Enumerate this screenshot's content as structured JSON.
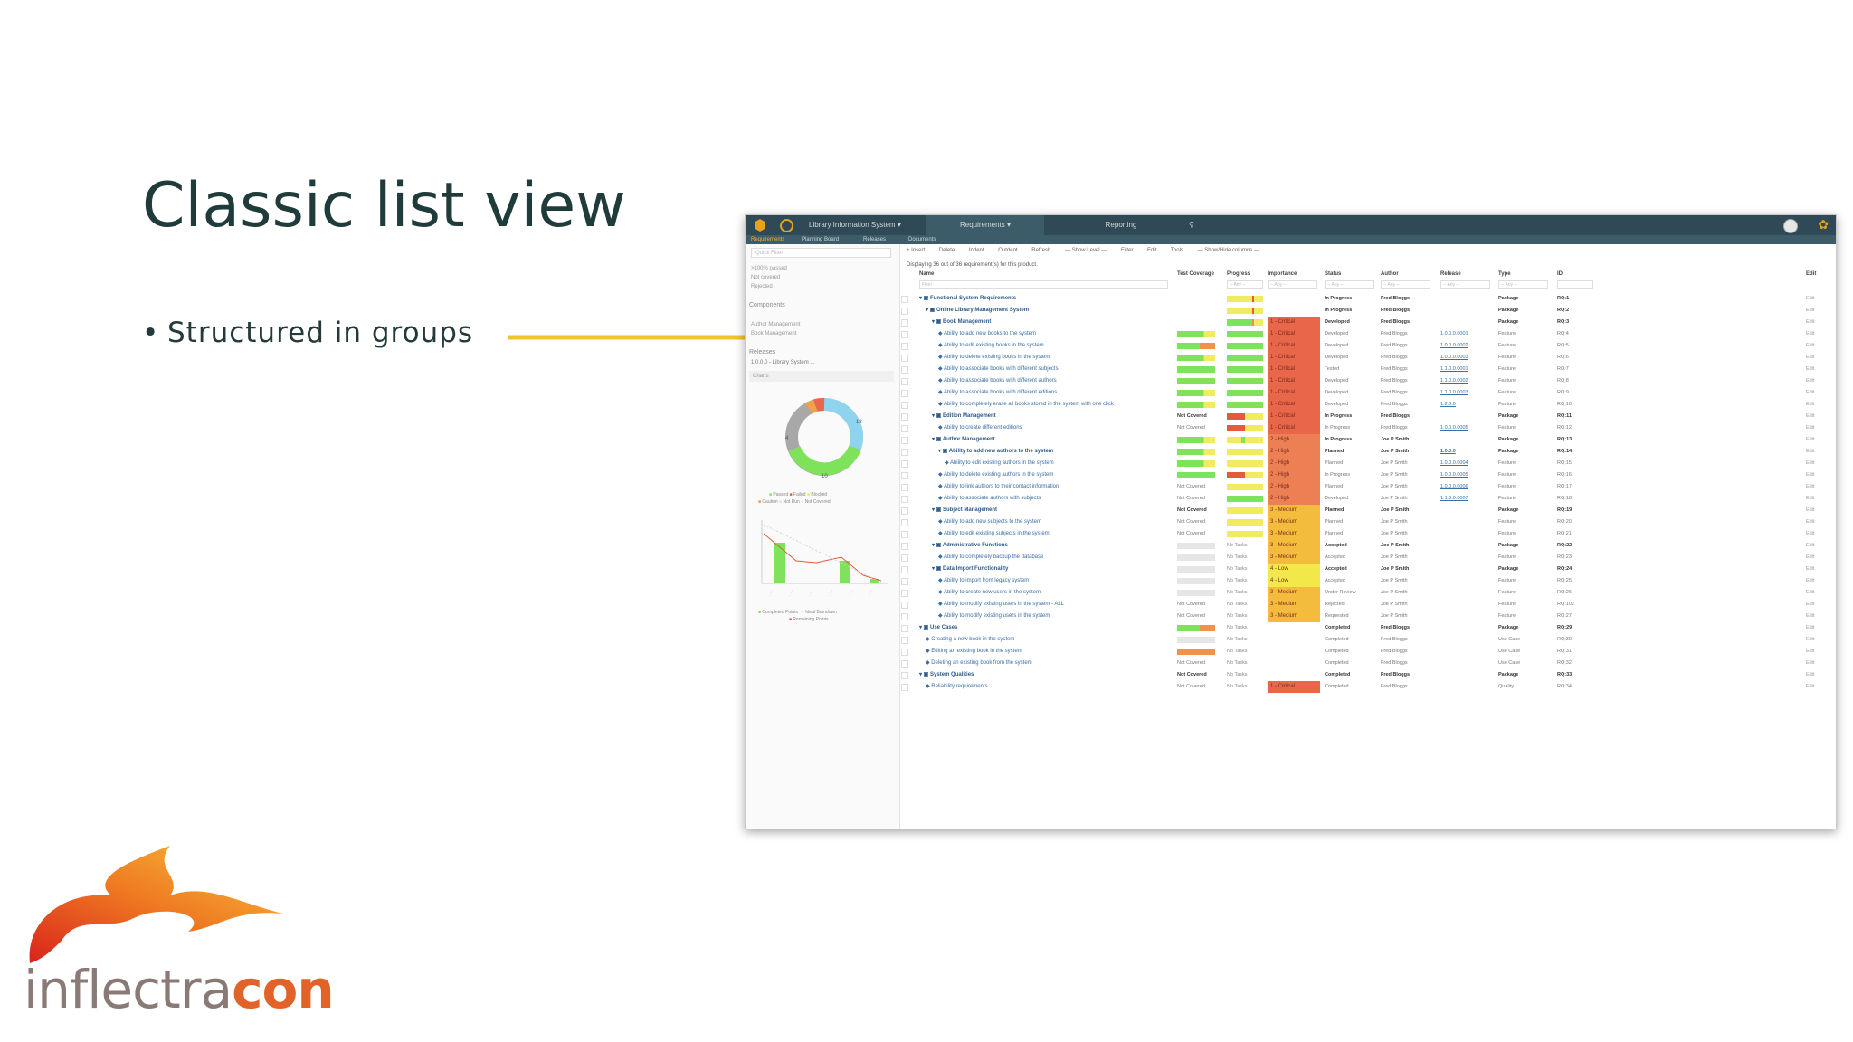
{
  "slide": {
    "title": "Classic list view",
    "bullet": "Structured in groups",
    "brand": {
      "part1": "inflectra",
      "part2": "con"
    }
  },
  "app": {
    "topbar": {
      "project": "Library Information System ▾",
      "section": "Requirements ▾",
      "reporting": "Reporting"
    },
    "subnav": [
      "Requirements",
      "Planning Board",
      "Releases",
      "Documents"
    ],
    "sidebar": {
      "filter_placeholder": "Quick Filter",
      "filters": [
        ">100% passed",
        "Not covered",
        "Rejected"
      ],
      "components_title": "Components",
      "components": [
        "Author Management",
        "Book Management"
      ],
      "releases_title": "Releases",
      "release_selected": "1.0.0.0 - Library System ...",
      "charts_title": "Charts",
      "donut_labels": [
        "4",
        "13",
        "10"
      ],
      "donut_legend": [
        "Passed",
        "Failed",
        "Blocked",
        "Caution",
        "Not Run",
        "Not Covered"
      ],
      "burndown_legend": [
        "Completed Points",
        "Ideal Burndown",
        "Remaining Points"
      ]
    },
    "toolbar": [
      "+ Insert",
      "Delete",
      "Indent",
      "Outdent",
      "Refresh",
      "— Show Level —",
      "Filter",
      "Edit",
      "Tools",
      "— Show/Hide columns —"
    ],
    "info": "Displaying 36 out of 36 requirement(s) for this product.",
    "columns": [
      "Name",
      "Test Coverage",
      "Progress",
      "Importance",
      "Status",
      "Author",
      "Release",
      "Type",
      "ID",
      "Edit"
    ],
    "filter_row": {
      "name": "Filter",
      "any": "-- Any --"
    },
    "edit_label": "Edit",
    "rows": [
      {
        "indent": 0,
        "pkg": true,
        "name": "Functional System Requirements",
        "tc": "gg",
        "pg": "ys",
        "imp": "",
        "status": "In Progress",
        "author": "Fred Bloggs",
        "release": "",
        "type": "Package",
        "id": "RQ:1"
      },
      {
        "indent": 1,
        "pkg": true,
        "name": "Online Library Management System",
        "tc": "gg",
        "pg": "ys",
        "imp": "",
        "status": "In Progress",
        "author": "Fred Bloggs",
        "release": "",
        "type": "Package",
        "id": "RQ:2"
      },
      {
        "indent": 2,
        "pkg": true,
        "name": "Book Management",
        "tc": "gg",
        "pg": "gs",
        "imp": "1 - Critical",
        "status": "Developed",
        "author": "Fred Bloggs",
        "release": "",
        "type": "Package",
        "id": "RQ:3"
      },
      {
        "indent": 3,
        "pkg": false,
        "name": "Ability to add new books to the system",
        "tc": "gy",
        "pg": "g",
        "imp": "1 - Critical",
        "status": "Developed",
        "author": "Fred Bloggs",
        "release": "1.0.0.0.0001",
        "type": "Feature",
        "id": "RQ:4"
      },
      {
        "indent": 3,
        "pkg": false,
        "name": "Ability to edit existing books in the system",
        "tc": "go",
        "pg": "g",
        "imp": "1 - Critical",
        "status": "Developed",
        "author": "Fred Bloggs",
        "release": "1.0.0.0.0002",
        "type": "Feature",
        "id": "RQ:5"
      },
      {
        "indent": 3,
        "pkg": false,
        "name": "Ability to delete existing books in the system",
        "tc": "gy",
        "pg": "g",
        "imp": "1 - Critical",
        "status": "Developed",
        "author": "Fred Bloggs",
        "release": "1.0.0.0.0003",
        "type": "Feature",
        "id": "RQ:6"
      },
      {
        "indent": 3,
        "pkg": false,
        "name": "Ability to associate books with different subjects",
        "tc": "g",
        "pg": "g",
        "imp": "1 - Critical",
        "status": "Tested",
        "author": "Fred Bloggs",
        "release": "1.1.0.0.0001",
        "type": "Feature",
        "id": "RQ:7"
      },
      {
        "indent": 3,
        "pkg": false,
        "name": "Ability to associate books with different authors",
        "tc": "g",
        "pg": "g",
        "imp": "1 - Critical",
        "status": "Developed",
        "author": "Fred Bloggs",
        "release": "1.1.0.0.0002",
        "type": "Feature",
        "id": "RQ:8"
      },
      {
        "indent": 3,
        "pkg": false,
        "name": "Ability to associate books with different editions",
        "tc": "gy",
        "pg": "g",
        "imp": "1 - Critical",
        "status": "Developed",
        "author": "Fred Bloggs",
        "release": "1.1.0.0.0003",
        "type": "Feature",
        "id": "RQ:9"
      },
      {
        "indent": 3,
        "pkg": false,
        "name": "Ability to completely erase all books stored in the system with one click",
        "tc": "gy",
        "pg": "g",
        "imp": "1 - Critical",
        "status": "Developed",
        "author": "Fred Bloggs",
        "release": "1.2.0.0",
        "type": "Feature",
        "id": "RQ:10"
      },
      {
        "indent": 2,
        "pkg": true,
        "name": "Edition Management",
        "tc": "n",
        "pg": "ry",
        "imp": "1 - Critical",
        "status": "In Progress",
        "author": "Fred Bloggs",
        "release": "",
        "type": "Package",
        "id": "RQ:11"
      },
      {
        "indent": 3,
        "pkg": false,
        "name": "Ability to create different editions",
        "tc": "n",
        "pg": "ry",
        "imp": "1 - Critical",
        "status": "In Progress",
        "author": "Fred Bloggs",
        "release": "1.0.0.0.0005",
        "type": "Feature",
        "id": "RQ:12"
      },
      {
        "indent": 2,
        "pkg": true,
        "name": "Author Management",
        "tc": "gy",
        "pg": "yg",
        "imp": "2 - High",
        "status": "In Progress",
        "author": "Joe P Smith",
        "release": "",
        "type": "Package",
        "id": "RQ:13"
      },
      {
        "indent": 3,
        "pkg": true,
        "name": "Ability to add new authors to the system",
        "tc": "gy",
        "pg": "y",
        "imp": "2 - High",
        "status": "Planned",
        "author": "Joe P Smith",
        "release": "1.0.0.0",
        "type": "Package",
        "id": "RQ:14"
      },
      {
        "indent": 4,
        "pkg": false,
        "name": "Ability to edit existing authors in the system",
        "tc": "gy",
        "pg": "y",
        "imp": "2 - High",
        "status": "Planned",
        "author": "Joe P Smith",
        "release": "1.0.0.0.0004",
        "type": "Feature",
        "id": "RQ:15"
      },
      {
        "indent": 3,
        "pkg": false,
        "name": "Ability to delete existing authors in the system",
        "tc": "g",
        "pg": "ry",
        "imp": "2 - High",
        "status": "In Progress",
        "author": "Joe P Smith",
        "release": "1.0.0.0.0005",
        "type": "Feature",
        "id": "RQ:16"
      },
      {
        "indent": 3,
        "pkg": false,
        "name": "Ability to link authors to their contact information",
        "tc": "n",
        "pg": "y",
        "imp": "2 - High",
        "status": "Planned",
        "author": "Joe P Smith",
        "release": "1.0.0.0.0006",
        "type": "Feature",
        "id": "RQ:17"
      },
      {
        "indent": 3,
        "pkg": false,
        "name": "Ability to associate authors with subjects",
        "tc": "n",
        "pg": "g",
        "imp": "2 - High",
        "status": "Developed",
        "author": "Joe P Smith",
        "release": "1.1.0.0.0007",
        "type": "Feature",
        "id": "RQ:18"
      },
      {
        "indent": 2,
        "pkg": true,
        "name": "Subject Management",
        "tc": "n",
        "pg": "y",
        "imp": "3 - Medium",
        "status": "Planned",
        "author": "Joe P Smith",
        "release": "",
        "type": "Package",
        "id": "RQ:19"
      },
      {
        "indent": 3,
        "pkg": false,
        "name": "Ability to add new subjects to the system",
        "tc": "n",
        "pg": "y",
        "imp": "3 - Medium",
        "status": "Planned",
        "author": "Joe P Smith",
        "release": "",
        "type": "Feature",
        "id": "RQ:20"
      },
      {
        "indent": 3,
        "pkg": false,
        "name": "Ability to edit existing subjects in the system",
        "tc": "n",
        "pg": "y",
        "imp": "3 - Medium",
        "status": "Planned",
        "author": "Joe P Smith",
        "release": "",
        "type": "Feature",
        "id": "RQ:21"
      },
      {
        "indent": 2,
        "pkg": true,
        "name": "Administrative Functions",
        "tc": "e",
        "pg": "t",
        "imp": "3 - Medium",
        "status": "Accepted",
        "author": "Joe P Smith",
        "release": "",
        "type": "Package",
        "id": "RQ:22"
      },
      {
        "indent": 3,
        "pkg": false,
        "name": "Ability to completely backup the database",
        "tc": "e",
        "pg": "t",
        "imp": "3 - Medium",
        "status": "Accepted",
        "author": "Joe P Smith",
        "release": "",
        "type": "Feature",
        "id": "RQ:23"
      },
      {
        "indent": 2,
        "pkg": true,
        "name": "Data Import Functionality",
        "tc": "e",
        "pg": "t",
        "imp": "4 - Low",
        "status": "Accepted",
        "author": "Joe P Smith",
        "release": "",
        "type": "Package",
        "id": "RQ:24"
      },
      {
        "indent": 3,
        "pkg": false,
        "name": "Ability to import from legacy system",
        "tc": "e",
        "pg": "t",
        "imp": "4 - Low",
        "status": "Accepted",
        "author": "Joe P Smith",
        "release": "",
        "type": "Feature",
        "id": "RQ:25"
      },
      {
        "indent": 3,
        "pkg": false,
        "name": "Ability to create new users in the system",
        "tc": "e",
        "pg": "t",
        "imp": "3 - Medium",
        "status": "Under Review",
        "author": "Joe P Smith",
        "release": "",
        "type": "Feature",
        "id": "RQ:26"
      },
      {
        "indent": 3,
        "pkg": false,
        "name": "Ability to modify existing users in the system - ALL",
        "tc": "n",
        "pg": "t",
        "imp": "3 - Medium",
        "status": "Rejected",
        "author": "Joe P Smith",
        "release": "",
        "type": "Feature",
        "id": "RQ:102"
      },
      {
        "indent": 3,
        "pkg": false,
        "name": "Ability to modify existing users in the system",
        "tc": "n",
        "pg": "t",
        "imp": "3 - Medium",
        "status": "Requested",
        "author": "Joe P Smith",
        "release": "",
        "type": "Feature",
        "id": "RQ:27"
      },
      {
        "indent": 0,
        "pkg": true,
        "name": "Use Cases",
        "tc": "go",
        "pg": "t",
        "imp": "",
        "status": "Completed",
        "author": "Fred Bloggs",
        "release": "",
        "type": "Package",
        "id": "RQ:29"
      },
      {
        "indent": 1,
        "pkg": false,
        "name": "Creating a new book in the system",
        "tc": "e",
        "pg": "t",
        "imp": "",
        "status": "Completed",
        "author": "Fred Bloggs",
        "release": "",
        "type": "Use Case",
        "id": "RQ:30"
      },
      {
        "indent": 1,
        "pkg": false,
        "name": "Editing an existing book in the system",
        "tc": "o",
        "pg": "t",
        "imp": "",
        "status": "Completed",
        "author": "Fred Bloggs",
        "release": "",
        "type": "Use Case",
        "id": "RQ:31"
      },
      {
        "indent": 1,
        "pkg": false,
        "name": "Deleting an existing book from the system",
        "tc": "n",
        "pg": "t",
        "imp": "",
        "status": "Completed",
        "author": "Fred Bloggs",
        "release": "",
        "type": "Use Case",
        "id": "RQ:32"
      },
      {
        "indent": 0,
        "pkg": true,
        "name": "System Qualities",
        "tc": "n",
        "pg": "t",
        "imp": "",
        "status": "Completed",
        "author": "Fred Bloggs",
        "release": "",
        "type": "Package",
        "id": "RQ:33"
      },
      {
        "indent": 1,
        "pkg": false,
        "name": "Reliability requirements",
        "tc": "n",
        "pg": "t",
        "imp": "1 - Critical",
        "status": "Completed",
        "author": "Fred Bloggs",
        "release": "",
        "type": "Quality",
        "id": "RQ:34"
      }
    ],
    "text_not_covered": "Not Covered",
    "text_no_tasks": "No Tasks"
  },
  "colors": {
    "title": "#1f3b3a",
    "arrow": "#f3c22f",
    "topbar": "#2f4a56",
    "critical": "#e8664a",
    "high": "#ec7f54",
    "medium": "#f3bc3c",
    "low": "#f2e84a",
    "green": "#7fe25b",
    "yellow": "#f1ec5e",
    "orange": "#f2914a",
    "red": "#e55a3f",
    "empty": "#e6e6e6"
  }
}
